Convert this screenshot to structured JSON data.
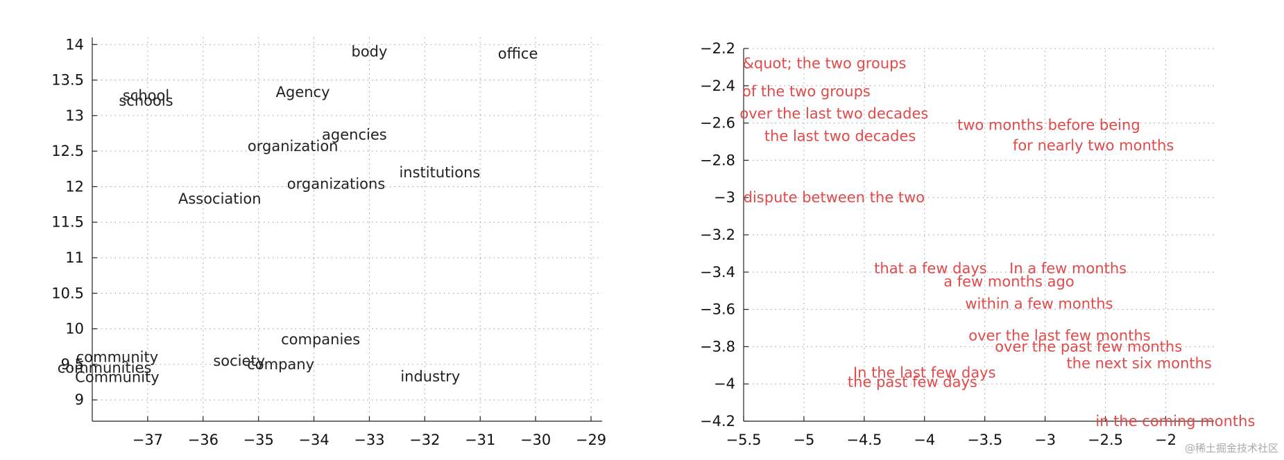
{
  "watermark": "@稀土掘金技术社区",
  "chart_data": [
    {
      "type": "scatter",
      "label_color": "#222222",
      "xlim": [
        -38,
        -28.8
      ],
      "ylim": [
        8.7,
        14.1
      ],
      "xticks": [
        -37,
        -36,
        -35,
        -34,
        -33,
        -32,
        -31,
        -30,
        -29
      ],
      "yticks": [
        9,
        9.5,
        10,
        10.5,
        11,
        11.5,
        12,
        12.5,
        13,
        13.5,
        14
      ],
      "grid": true,
      "points": [
        {
          "label": "body",
          "x": -33.0,
          "y": 13.9
        },
        {
          "label": "office",
          "x": -30.32,
          "y": 13.87
        },
        {
          "label": "school",
          "x": -37.03,
          "y": 13.28
        },
        {
          "label": "schools",
          "x": -37.03,
          "y": 13.21
        },
        {
          "label": "Agency",
          "x": -34.2,
          "y": 13.33
        },
        {
          "label": "agencies",
          "x": -33.27,
          "y": 12.73
        },
        {
          "label": "organization",
          "x": -34.38,
          "y": 12.57
        },
        {
          "label": "institutions",
          "x": -31.73,
          "y": 12.2
        },
        {
          "label": "organizations",
          "x": -33.6,
          "y": 12.04
        },
        {
          "label": "Association",
          "x": -35.7,
          "y": 11.83
        },
        {
          "label": "companies",
          "x": -33.88,
          "y": 9.85
        },
        {
          "label": "community",
          "x": -37.55,
          "y": 9.6
        },
        {
          "label": "society",
          "x": -35.35,
          "y": 9.55
        },
        {
          "label": "company",
          "x": -34.6,
          "y": 9.5
        },
        {
          "label": "communities",
          "x": -37.78,
          "y": 9.45
        },
        {
          "label": "Community",
          "x": -37.55,
          "y": 9.32
        },
        {
          "label": "industry",
          "x": -31.9,
          "y": 9.33
        }
      ]
    },
    {
      "type": "scatter",
      "label_color": "#e04a4a",
      "xlim": [
        -5.5,
        -1.6
      ],
      "ylim": [
        -4.2,
        -2.2
      ],
      "xticks": [
        -5.5,
        -5,
        -4.5,
        -4,
        -3.5,
        -3,
        -2.5,
        -2
      ],
      "yticks": [
        -2.2,
        -2.4,
        -2.6,
        -2.8,
        -3,
        -3.2,
        -3.4,
        -3.6,
        -3.8,
        -4,
        -4.2
      ],
      "grid": true,
      "points": [
        {
          "label": "&quot; the two groups",
          "x": -4.83,
          "y": -2.28
        },
        {
          "label": "of the two groups",
          "x": -4.98,
          "y": -2.43
        },
        {
          "label": "over the last two decades",
          "x": -4.75,
          "y": -2.55
        },
        {
          "label": "the last two decades",
          "x": -4.7,
          "y": -2.67
        },
        {
          "label": "two months before being",
          "x": -2.97,
          "y": -2.61
        },
        {
          "label": "for nearly two months",
          "x": -2.6,
          "y": -2.72
        },
        {
          "label": "dispute between the two",
          "x": -4.75,
          "y": -3.0
        },
        {
          "label": "that a few days",
          "x": -3.95,
          "y": -3.38
        },
        {
          "label": "In a few months",
          "x": -2.81,
          "y": -3.38
        },
        {
          "label": "a few months ago",
          "x": -3.3,
          "y": -3.45
        },
        {
          "label": "within a few months",
          "x": -3.05,
          "y": -3.57
        },
        {
          "label": "over the last few months",
          "x": -2.88,
          "y": -3.74
        },
        {
          "label": "over the past few months",
          "x": -2.64,
          "y": -3.8
        },
        {
          "label": "the next six months",
          "x": -2.22,
          "y": -3.89
        },
        {
          "label": "In the last few days",
          "x": -4.0,
          "y": -3.94
        },
        {
          "label": "the past few days",
          "x": -4.1,
          "y": -3.99
        },
        {
          "label": "in the coming months",
          "x": -1.92,
          "y": -4.2
        }
      ]
    }
  ]
}
